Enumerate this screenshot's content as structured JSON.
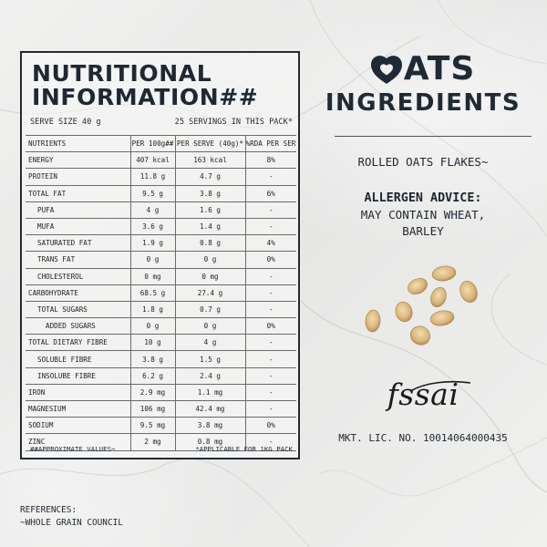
{
  "nutrition": {
    "title": "NUTRITIONAL\nINFORMATION##",
    "serve_size": "SERVE SIZE 40 g",
    "servings": "25 SERVINGS IN THIS PACK*",
    "headers": [
      "NUTRIENTS",
      "PER 100g##",
      "PER SERVE (40g)*",
      "%RDA PER SERVE"
    ],
    "rows": [
      {
        "name": "ENERGY",
        "per100": "407 kcal",
        "serve": "163 kcal",
        "rda": "8%"
      },
      {
        "name": "PROTEIN",
        "per100": "11.8 g",
        "serve": "4.7 g",
        "rda": "-"
      },
      {
        "name": "TOTAL FAT",
        "per100": "9.5 g",
        "serve": "3.8 g",
        "rda": "6%"
      },
      {
        "name": "PUFA",
        "per100": "4 g",
        "serve": "1.6 g",
        "rda": "-"
      },
      {
        "name": "MUFA",
        "per100": "3.6 g",
        "serve": "1.4 g",
        "rda": "-"
      },
      {
        "name": "SATURATED FAT",
        "per100": "1.9 g",
        "serve": "0.8 g",
        "rda": "4%"
      },
      {
        "name": "TRANS FAT",
        "per100": "0 g",
        "serve": "0 g",
        "rda": "0%"
      },
      {
        "name": "CHOLESTEROL",
        "per100": "0 mg",
        "serve": "0 mg",
        "rda": "-"
      },
      {
        "name": "CARBOHYDRATE",
        "per100": "68.5 g",
        "serve": "27.4 g",
        "rda": "-"
      },
      {
        "name": "TOTAL SUGARS",
        "per100": "1.8 g",
        "serve": "0.7 g",
        "rda": "-"
      },
      {
        "name": "ADDED SUGARS",
        "per100": "0 g",
        "serve": "0 g",
        "rda": "0%"
      },
      {
        "name": "TOTAL DIETARY FIBRE",
        "per100": "10 g",
        "serve": "4 g",
        "rda": "-"
      },
      {
        "name": "SOLUBLE FIBRE",
        "per100": "3.8 g",
        "serve": "1.5 g",
        "rda": "-"
      },
      {
        "name": "INSOLUBE FIBRE",
        "per100": "6.2 g",
        "serve": "2.4 g",
        "rda": "-"
      },
      {
        "name": "IRON",
        "per100": "2.9 mg",
        "serve": "1.1 mg",
        "rda": "-"
      },
      {
        "name": "MAGNESIUM",
        "per100": "106 mg",
        "serve": "42.4 mg",
        "rda": "-"
      },
      {
        "name": "SODIUM",
        "per100": "9.5 mg",
        "serve": "3.8 mg",
        "rda": "0%"
      },
      {
        "name": "ZINC",
        "per100": "2 mg",
        "serve": "0.8 mg",
        "rda": "-"
      }
    ],
    "footnote_left": "##APPROXIMATE VALUES~",
    "footnote_right": "*APPLICABLE FOR 1KG PACK"
  },
  "references": {
    "heading": "REFERENCES:",
    "item": "~WHOLE GRAIN COUNCIL"
  },
  "brand": {
    "word_rest": "ATS",
    "subtitle": "INGREDIENTS",
    "accent_color": "#1f2a36"
  },
  "ingredients": {
    "text": "ROLLED OATS FLAKES~"
  },
  "allergen": {
    "heading": "ALLERGEN ADVICE:",
    "body": "MAY CONTAIN WHEAT,\nBARLEY"
  },
  "fssai": {
    "logo_text": "fssai",
    "license": "MKT. LIC. NO. 10014064000435"
  }
}
